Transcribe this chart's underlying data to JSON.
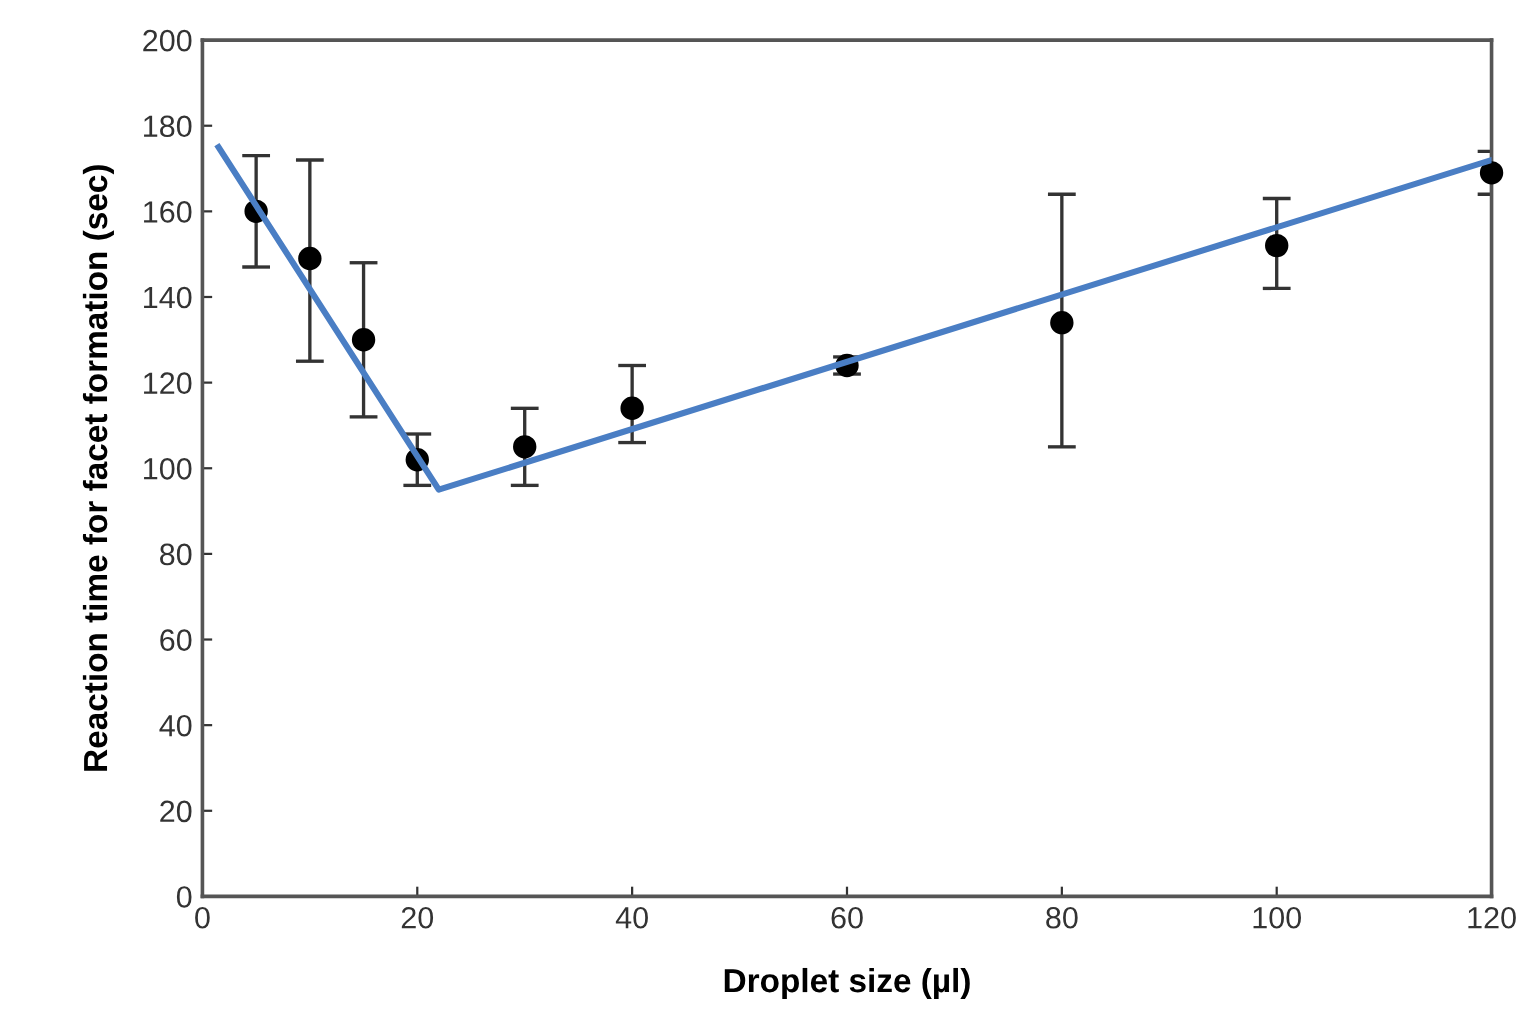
{
  "chart_data": {
    "type": "scatter",
    "xlabel": "Droplet size (µl)",
    "ylabel": "Reaction time for facet formation (sec)",
    "xlim": [
      0,
      120
    ],
    "ylim": [
      0,
      200
    ],
    "xticks": [
      0,
      20,
      40,
      60,
      80,
      100,
      120
    ],
    "yticks": [
      0,
      20,
      40,
      60,
      80,
      100,
      120,
      140,
      160,
      180,
      200
    ],
    "grid": false,
    "series": [
      {
        "color": "#000000",
        "marker": "circle",
        "x": [
          5,
          10,
          15,
          20,
          30,
          40,
          60,
          80,
          100,
          120
        ],
        "values": [
          160,
          149,
          130,
          102,
          105,
          114,
          124,
          134,
          152,
          169
        ],
        "errors": [
          [
            147,
            173
          ],
          [
            125,
            172
          ],
          [
            112,
            148
          ],
          [
            96,
            108
          ],
          [
            96,
            114
          ],
          [
            106,
            124
          ],
          [
            122,
            126
          ],
          [
            105,
            164
          ],
          [
            142,
            163
          ],
          [
            164,
            174
          ]
        ]
      },
      {
        "type": "line",
        "color": "#4a7ec4",
        "marker": "none",
        "line_style": "solid",
        "x": [
          1.5,
          22,
          120
        ],
        "values": [
          175,
          95,
          172
        ]
      }
    ]
  }
}
